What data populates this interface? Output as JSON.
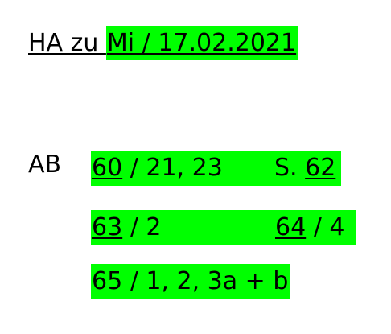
{
  "title": {
    "prefix": "HA zu ",
    "date": "Mi / 17.02.2021"
  },
  "rows": [
    {
      "label": "AB",
      "page1": "60",
      "rest1": " / 21, 23",
      "sep": "S. ",
      "page2": "62"
    },
    {
      "page1": "63",
      "rest1": " / 2",
      "page2": "64",
      "rest2": " / 4"
    },
    {
      "text": "65 / 1, 2, 3a + b"
    }
  ],
  "colors": {
    "highlight": "#00ff00",
    "text": "#000000",
    "background": "#ffffff"
  }
}
